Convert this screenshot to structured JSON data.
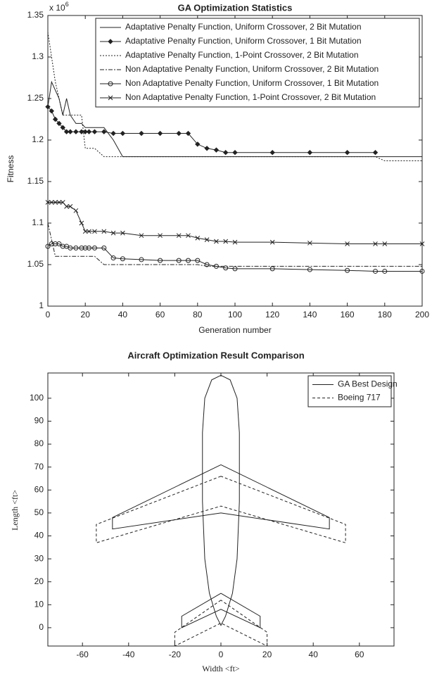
{
  "chart_data": [
    {
      "type": "line",
      "title": "GA Optimization Statistics",
      "y_multiplier": "x 10",
      "y_multiplier_exp": "6",
      "xlabel": "Generation number",
      "ylabel": "Fitness",
      "xlim": [
        0,
        200
      ],
      "xticks": [
        0,
        20,
        40,
        60,
        80,
        100,
        120,
        140,
        160,
        180,
        200
      ],
      "ylim": [
        1,
        1.35
      ],
      "yticks": [
        1,
        1.05,
        1.1,
        1.15,
        1.2,
        1.25,
        1.3,
        1.35
      ],
      "legend": "top-right",
      "x": [
        0,
        2,
        4,
        6,
        8,
        10,
        12,
        15,
        18,
        20,
        22,
        25,
        30,
        35,
        40,
        50,
        60,
        70,
        75,
        80,
        85,
        90,
        95,
        100,
        120,
        140,
        160,
        175,
        180,
        200
      ],
      "series": [
        {
          "name": "Adaptative Penalty Function, Uniform Crossover, 2 Bit Mutation",
          "color": "#222",
          "dash": "none",
          "marker": "none",
          "values": [
            1.24,
            1.27,
            1.26,
            1.25,
            1.23,
            1.25,
            1.23,
            1.22,
            1.22,
            1.215,
            1.215,
            1.215,
            1.215,
            1.2,
            1.18,
            1.18,
            1.18,
            1.18,
            1.18,
            1.18,
            1.18,
            1.18,
            1.18,
            1.18,
            1.18,
            1.18,
            1.18,
            1.18,
            1.18,
            1.18
          ]
        },
        {
          "name": "Adaptative Penalty Function, Uniform Crossover, 1 Bit Mutation",
          "color": "#222",
          "dash": "none",
          "marker": "diamond",
          "values": [
            1.24,
            1.235,
            1.225,
            1.22,
            1.215,
            1.21,
            1.21,
            1.21,
            1.21,
            1.21,
            1.21,
            1.21,
            1.21,
            1.208,
            1.208,
            1.208,
            1.208,
            1.208,
            1.208,
            1.195,
            1.19,
            1.188,
            1.185,
            1.185,
            1.185,
            1.185,
            1.185,
            1.185,
            null,
            null
          ]
        },
        {
          "name": "Adaptative Penalty Function, 1-Point Crossover, 2 Bit Mutation",
          "color": "#222",
          "dash": "2 2",
          "marker": "none",
          "values": [
            1.33,
            1.3,
            1.27,
            1.25,
            1.23,
            1.23,
            1.23,
            1.23,
            1.23,
            1.19,
            1.19,
            1.19,
            1.18,
            1.18,
            1.18,
            1.18,
            1.18,
            1.18,
            1.18,
            1.18,
            1.18,
            1.18,
            1.18,
            1.18,
            1.18,
            1.18,
            1.18,
            1.18,
            1.175,
            1.175
          ]
        },
        {
          "name": "Non Adaptative Penalty Function, Uniform Crossover, 2 Bit Mutation",
          "color": "#222",
          "dash": "6 2 2 2",
          "marker": "none",
          "values": [
            1.1,
            1.08,
            1.06,
            1.06,
            1.06,
            1.06,
            1.06,
            1.06,
            1.06,
            1.06,
            1.06,
            1.06,
            1.05,
            1.05,
            1.05,
            1.05,
            1.05,
            1.05,
            1.05,
            1.05,
            1.048,
            1.048,
            1.048,
            1.048,
            1.048,
            1.048,
            1.048,
            1.048,
            1.048,
            1.048
          ]
        },
        {
          "name": "Non Adaptative Penalty Function, Uniform Crossover, 1 Bit Mutation",
          "color": "#222",
          "dash": "none",
          "marker": "circle",
          "values": [
            1.072,
            1.075,
            1.075,
            1.075,
            1.072,
            1.072,
            1.07,
            1.07,
            1.07,
            1.07,
            1.07,
            1.07,
            1.07,
            1.058,
            1.057,
            1.056,
            1.055,
            1.055,
            1.055,
            1.055,
            1.05,
            1.048,
            1.046,
            1.045,
            1.045,
            1.044,
            1.043,
            1.042,
            1.042,
            1.042
          ]
        },
        {
          "name": "Non Adaptative Penalty Function, 1-Point Crossover, 2 Bit Mutation",
          "color": "#222",
          "dash": "none",
          "marker": "x",
          "values": [
            1.125,
            1.125,
            1.125,
            1.125,
            1.125,
            1.12,
            1.12,
            1.115,
            1.1,
            1.09,
            1.09,
            1.09,
            1.09,
            1.088,
            1.088,
            1.085,
            1.085,
            1.085,
            1.085,
            1.082,
            1.08,
            1.078,
            1.078,
            1.077,
            1.077,
            1.076,
            1.075,
            1.075,
            1.075,
            1.075
          ]
        }
      ]
    },
    {
      "type": "line",
      "title": "Aircraft Optimization Result Comparison",
      "xlabel": "Width <ft>",
      "ylabel": "Length <ft>",
      "xlim": [
        -75,
        75
      ],
      "xticks": [
        -60,
        -40,
        -20,
        0,
        20,
        40,
        60
      ],
      "ylim": [
        -8,
        111
      ],
      "yticks": [
        0,
        10,
        20,
        30,
        40,
        50,
        60,
        70,
        80,
        90,
        100
      ],
      "legend": "top-right",
      "series": [
        {
          "name": "GA Best Design",
          "color": "#222",
          "dash": "none",
          "marker": "none",
          "x": [
            0,
            4,
            7,
            8,
            8,
            7,
            5,
            2,
            0,
            -2,
            -5,
            -7,
            -8,
            -8,
            -7,
            -4,
            0,
            null,
            0,
            -47,
            -47,
            0,
            47,
            47,
            0,
            null,
            0,
            -17,
            -17,
            0,
            17,
            17,
            0
          ],
          "values": [
            110,
            108,
            100,
            85,
            55,
            30,
            15,
            5,
            1,
            5,
            15,
            30,
            55,
            85,
            100,
            108,
            110,
            null,
            71,
            48,
            43,
            50,
            43,
            48,
            71,
            null,
            15,
            5,
            0,
            8,
            0,
            5,
            15
          ]
        },
        {
          "name": "Boeing 717",
          "color": "#222",
          "dash": "4 3",
          "marker": "none",
          "x": [
            0,
            -54,
            -54,
            0,
            54,
            54,
            0,
            null,
            0,
            -20,
            -20,
            0,
            20,
            20,
            0
          ],
          "values": [
            66,
            45,
            37,
            53,
            37,
            45,
            66,
            null,
            12,
            -2,
            -8,
            2,
            -8,
            -2,
            12
          ]
        }
      ]
    }
  ]
}
